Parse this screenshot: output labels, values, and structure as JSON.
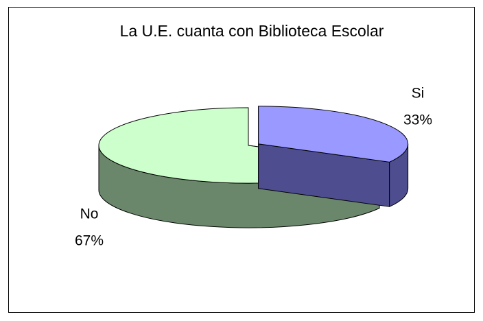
{
  "chart_data": {
    "type": "pie",
    "title": "La U.E. cuanta con Biblioteca Escolar",
    "categories": [
      "Si",
      "No"
    ],
    "values": [
      33,
      67
    ],
    "value_labels": [
      "33%",
      "67%"
    ],
    "colors": [
      "#9999ff",
      "#ccffcc"
    ],
    "side_colors": [
      "#4d4d8f",
      "#6b876b"
    ],
    "exploded": [
      true,
      false
    ],
    "three_d": true
  }
}
